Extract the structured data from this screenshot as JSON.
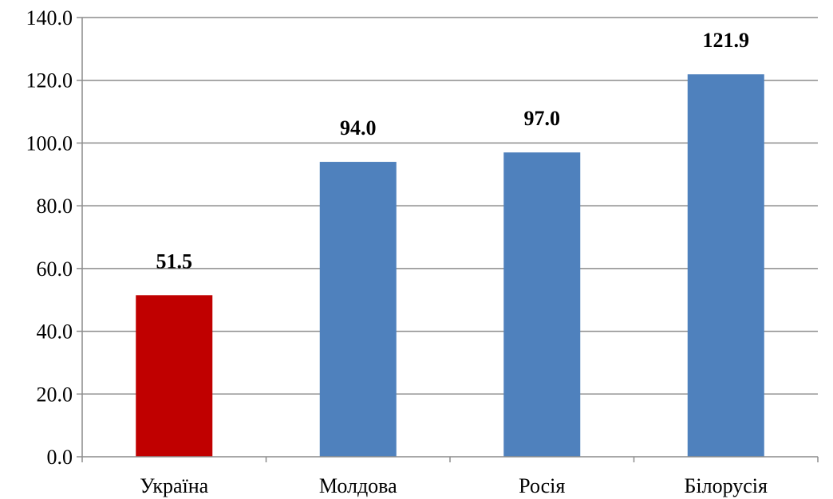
{
  "chart_data": {
    "type": "bar",
    "title": "",
    "xlabel": "",
    "ylabel": "",
    "categories": [
      "Україна",
      "Молдова",
      "Росія",
      "Білорусія"
    ],
    "values": [
      51.5,
      94.0,
      97.0,
      121.9
    ],
    "data_labels": [
      "51.5",
      "94.0",
      "97.0",
      "121.9"
    ],
    "bar_colors": [
      "#c00000",
      "#4f81bd",
      "#4f81bd",
      "#4f81bd"
    ],
    "ylim": [
      0,
      140
    ],
    "y_ticks": [
      0,
      20,
      40,
      60,
      80,
      100,
      120,
      140
    ],
    "y_tick_labels": [
      "0.0",
      "20.0",
      "40.0",
      "60.0",
      "80.0",
      "100.0",
      "120.0",
      "140.0"
    ],
    "grid": true,
    "legend": "none"
  }
}
